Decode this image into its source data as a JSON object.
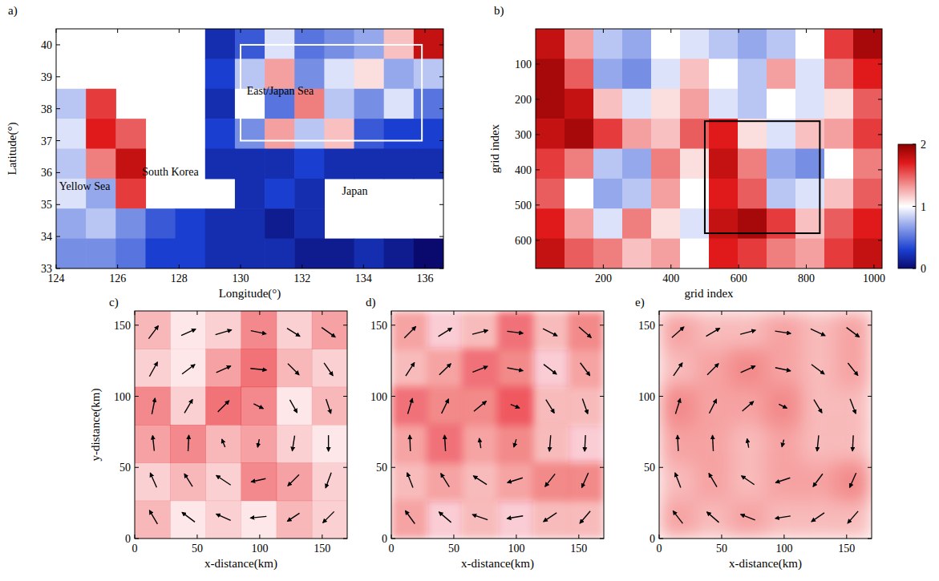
{
  "chart_data": [
    {
      "type": "heatmap",
      "letter": "a)",
      "xlabel": "Longitude(°)",
      "ylabel": "Latitude(°)",
      "xlim": [
        124,
        136.6
      ],
      "ylim": [
        33,
        40.5
      ],
      "xticks": [
        124,
        126,
        128,
        130,
        132,
        134,
        136
      ],
      "yticks": [
        33,
        34,
        35,
        36,
        37,
        38,
        39,
        40
      ],
      "values": [
        [
          null,
          null,
          null,
          null,
          null,
          0.2,
          0.4,
          0.9,
          0.5,
          0.6,
          0.7,
          1.2,
          1.8
        ],
        [
          null,
          null,
          null,
          null,
          null,
          0.3,
          0.8,
          1.3,
          0.6,
          0.9,
          1.1,
          0.7,
          0.8
        ],
        [
          0.8,
          1.6,
          null,
          null,
          null,
          0.2,
          1.0,
          0.5,
          1.4,
          0.8,
          0.6,
          0.9,
          0.5
        ],
        [
          0.9,
          1.7,
          1.5,
          null,
          null,
          0.3,
          0.6,
          1.3,
          0.8,
          1.2,
          0.4,
          0.3,
          0.3
        ],
        [
          0.8,
          1.4,
          1.8,
          null,
          null,
          0.2,
          0.2,
          0.2,
          0.3,
          0.2,
          0.2,
          0.2,
          0.2
        ],
        [
          0.9,
          0.7,
          1.6,
          null,
          null,
          null,
          0.2,
          0.3,
          0.2,
          null,
          null,
          null,
          null
        ],
        [
          0.7,
          0.8,
          0.6,
          0.4,
          0.3,
          0.2,
          0.2,
          0.1,
          0.2,
          null,
          null,
          null,
          null
        ],
        [
          0.6,
          0.6,
          0.5,
          0.3,
          0.3,
          0.2,
          0.2,
          0.2,
          0.1,
          0.1,
          0.2,
          0.1,
          0.0
        ]
      ],
      "box": {
        "x": [
          130,
          135.9
        ],
        "y": [
          37,
          40
        ]
      },
      "labels": [
        "Yellow Sea",
        "South Korea",
        "East/Japan Sea",
        "Japan"
      ],
      "colorbar": {
        "range": [
          0,
          2
        ],
        "ticks": [
          0,
          1,
          2
        ]
      }
    },
    {
      "type": "heatmap",
      "letter": "b)",
      "xlabel": "grid index",
      "ylabel": "grid index",
      "xlim": [
        0,
        1024
      ],
      "ylim": [
        680,
        0
      ],
      "xticks": [
        200,
        400,
        600,
        800,
        1000
      ],
      "yticks": [
        100,
        200,
        300,
        400,
        500,
        600
      ],
      "values": [
        [
          1.8,
          1.3,
          0.8,
          0.7,
          1.0,
          0.9,
          0.8,
          0.7,
          0.8,
          1.0,
          1.6,
          1.9
        ],
        [
          1.9,
          1.5,
          0.7,
          0.6,
          0.9,
          1.2,
          1.0,
          0.8,
          1.3,
          0.9,
          1.4,
          1.7
        ],
        [
          1.9,
          1.8,
          1.2,
          0.9,
          1.1,
          1.3,
          0.9,
          0.8,
          1.0,
          0.9,
          1.1,
          1.5
        ],
        [
          1.8,
          1.9,
          1.6,
          1.3,
          1.2,
          1.5,
          1.7,
          1.1,
          0.9,
          1.2,
          1.3,
          1.6
        ],
        [
          1.6,
          1.4,
          0.8,
          0.7,
          1.4,
          1.1,
          1.8,
          1.4,
          0.7,
          0.6,
          1.0,
          1.4
        ],
        [
          1.5,
          1.0,
          0.7,
          0.8,
          1.3,
          1.0,
          1.7,
          1.5,
          0.8,
          0.9,
          1.2,
          1.5
        ],
        [
          1.7,
          1.3,
          0.9,
          1.4,
          1.1,
          0.9,
          1.8,
          1.9,
          1.6,
          1.2,
          1.5,
          1.7
        ],
        [
          1.8,
          1.5,
          1.4,
          1.2,
          1.3,
          1.0,
          1.7,
          1.6,
          1.4,
          1.3,
          1.6,
          1.8
        ]
      ],
      "box": {
        "x": [
          500,
          840
        ],
        "y": [
          262,
          580
        ]
      },
      "colorbar": {
        "range": [
          0,
          2
        ],
        "ticks": [
          0,
          1,
          2
        ]
      }
    },
    {
      "type": "vector",
      "letter": "c)",
      "xlabel": "x-distance(km)",
      "ylabel": "y-distance(km)",
      "xlim": [
        0,
        170
      ],
      "ylim": [
        0,
        160
      ],
      "xticks": [
        0,
        50,
        100,
        150
      ],
      "yticks": [
        0,
        50,
        100,
        150
      ],
      "color": "#e8141c",
      "x": [
        15,
        43,
        71,
        99,
        127,
        155
      ],
      "y": [
        145,
        119,
        93,
        67,
        41,
        15
      ],
      "u": [
        [
          0.6,
          0.9,
          1.0,
          0.95,
          0.8,
          0.85
        ],
        [
          0.5,
          0.8,
          0.9,
          1.0,
          0.7,
          0.55
        ],
        [
          0.2,
          0.5,
          0.7,
          0.6,
          0.45,
          0.3
        ],
        [
          -0.1,
          0.05,
          -0.2,
          -0.1,
          -0.15,
          0.0
        ],
        [
          -0.4,
          -0.5,
          -0.9,
          -0.9,
          -0.7,
          -0.35
        ],
        [
          -0.5,
          -0.8,
          -0.9,
          -1.0,
          -0.75,
          -0.7
        ]
      ],
      "v": [
        [
          0.8,
          0.4,
          0.3,
          -0.2,
          -0.5,
          -0.6
        ],
        [
          0.9,
          0.6,
          0.4,
          -0.1,
          -0.7,
          -0.8
        ],
        [
          1.0,
          0.85,
          0.7,
          -0.3,
          -0.8,
          -0.9
        ],
        [
          0.95,
          1.0,
          0.5,
          -0.5,
          -0.95,
          -1.0
        ],
        [
          0.9,
          0.8,
          0.6,
          -0.2,
          -0.7,
          -0.95
        ],
        [
          0.85,
          0.6,
          0.4,
          -0.1,
          -0.5,
          -0.7
        ]
      ],
      "values": [
        [
          0.3,
          0.1,
          0.2,
          0.5,
          0.2,
          0.4
        ],
        [
          0.2,
          0.1,
          0.4,
          0.6,
          0.3,
          0.2
        ],
        [
          0.5,
          0.2,
          0.6,
          0.5,
          0.1,
          0.3
        ],
        [
          0.4,
          0.5,
          0.3,
          0.4,
          0.2,
          0.1
        ],
        [
          0.2,
          0.3,
          0.2,
          0.5,
          0.4,
          0.2
        ],
        [
          0.3,
          0.1,
          0.2,
          0.1,
          0.3,
          0.2
        ]
      ]
    },
    {
      "type": "vector",
      "letter": "d)",
      "xlabel": "x-distance(km)",
      "xlim": [
        0,
        170
      ],
      "ylim": [
        0,
        160
      ],
      "xticks": [
        0,
        50,
        100,
        150
      ],
      "yticks": [
        0,
        50,
        100,
        150
      ],
      "color": "#e8141c",
      "x": [
        15,
        43,
        71,
        99,
        127,
        155
      ],
      "y": [
        145,
        119,
        93,
        67,
        41,
        15
      ],
      "u": [
        [
          0.71,
          0.84,
          0.97,
          0.99,
          0.89,
          0.76
        ],
        [
          0.54,
          0.72,
          0.93,
          0.98,
          0.8,
          0.6
        ],
        [
          0.29,
          0.44,
          0.77,
          0.55,
          0.52,
          0.33
        ],
        [
          -0.04,
          -0.06,
          -0.1,
          -0.15,
          -0.08,
          -0.05
        ],
        [
          -0.36,
          -0.53,
          -0.83,
          -0.95,
          -0.62,
          -0.41
        ],
        [
          -0.59,
          -0.76,
          -0.95,
          -0.99,
          -0.82,
          -0.65
        ]
      ],
      "v": [
        [
          0.71,
          0.53,
          0.25,
          -0.12,
          -0.44,
          -0.66
        ],
        [
          0.83,
          0.69,
          0.36,
          -0.18,
          -0.61,
          -0.8
        ],
        [
          0.96,
          0.9,
          0.63,
          -0.22,
          -0.84,
          -0.94
        ],
        [
          1.0,
          1.0,
          0.6,
          -0.48,
          -1.0,
          -1.0
        ],
        [
          0.93,
          0.85,
          0.54,
          -0.3,
          -0.79,
          -0.92
        ],
        [
          0.81,
          0.65,
          0.33,
          -0.16,
          -0.55,
          -0.76
        ]
      ],
      "values": [
        [
          0.4,
          0.2,
          0.3,
          0.6,
          0.3,
          0.5
        ],
        [
          0.3,
          0.4,
          0.6,
          0.5,
          0.2,
          0.4
        ],
        [
          0.6,
          0.5,
          0.5,
          0.7,
          0.3,
          0.3
        ],
        [
          0.4,
          0.6,
          0.4,
          0.5,
          0.3,
          0.2
        ],
        [
          0.3,
          0.4,
          0.3,
          0.4,
          0.5,
          0.5
        ],
        [
          0.4,
          0.2,
          0.3,
          0.2,
          0.3,
          0.3
        ]
      ]
    },
    {
      "type": "vector",
      "letter": "e)",
      "xlabel": "x-distance(km)",
      "xlim": [
        0,
        170
      ],
      "ylim": [
        0,
        160
      ],
      "xticks": [
        0,
        50,
        100,
        150
      ],
      "yticks": [
        0,
        50,
        100,
        150
      ],
      "color": "#e8141c",
      "x": [
        15,
        43,
        71,
        99,
        127,
        155
      ],
      "y": [
        145,
        119,
        93,
        67,
        41,
        15
      ],
      "u": [
        [
          0.75,
          0.85,
          0.95,
          0.98,
          0.9,
          0.8
        ],
        [
          0.55,
          0.7,
          0.9,
          0.95,
          0.8,
          0.62
        ],
        [
          0.3,
          0.45,
          0.7,
          0.5,
          0.5,
          0.35
        ],
        [
          -0.05,
          -0.05,
          -0.1,
          -0.12,
          -0.1,
          -0.05
        ],
        [
          -0.35,
          -0.5,
          -0.8,
          -0.9,
          -0.6,
          -0.4
        ],
        [
          -0.6,
          -0.75,
          -0.9,
          -0.95,
          -0.8,
          -0.65
        ]
      ],
      "v": [
        [
          0.66,
          0.5,
          0.25,
          -0.15,
          -0.42,
          -0.6
        ],
        [
          0.8,
          0.7,
          0.4,
          -0.2,
          -0.6,
          -0.78
        ],
        [
          0.95,
          0.88,
          0.6,
          -0.25,
          -0.82,
          -0.92
        ],
        [
          0.98,
          0.98,
          0.55,
          -0.45,
          -0.98,
          -0.98
        ],
        [
          0.92,
          0.85,
          0.55,
          -0.3,
          -0.8,
          -0.9
        ],
        [
          0.78,
          0.65,
          0.35,
          -0.15,
          -0.55,
          -0.75
        ]
      ],
      "values": [
        [
          0.4,
          0.3,
          0.3,
          0.4,
          0.3,
          0.4
        ],
        [
          0.3,
          0.4,
          0.5,
          0.4,
          0.3,
          0.4
        ],
        [
          0.5,
          0.4,
          0.4,
          0.5,
          0.3,
          0.3
        ],
        [
          0.4,
          0.4,
          0.3,
          0.4,
          0.3,
          0.3
        ],
        [
          0.3,
          0.4,
          0.3,
          0.4,
          0.4,
          0.5
        ],
        [
          0.4,
          0.3,
          0.4,
          0.3,
          0.3,
          0.3
        ]
      ]
    }
  ]
}
